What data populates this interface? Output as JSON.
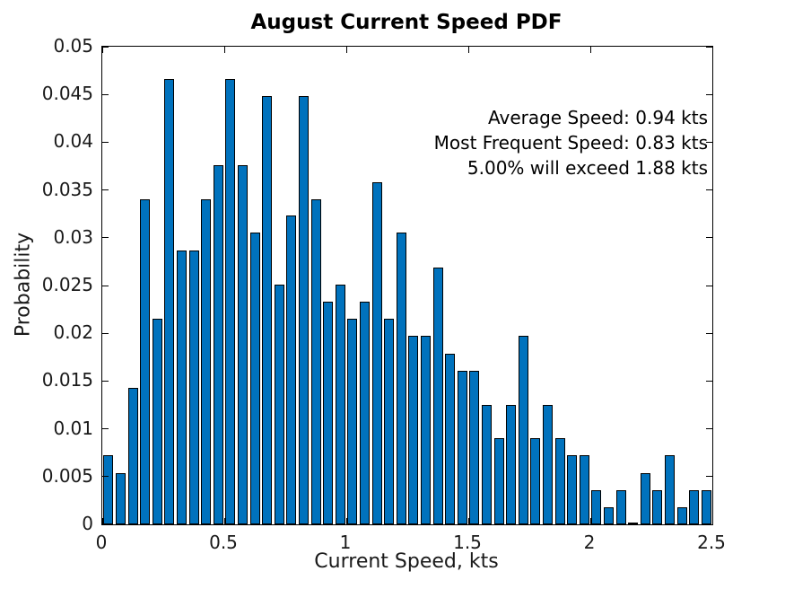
{
  "chart_data": {
    "type": "bar",
    "title": "August Current Speed PDF",
    "xlabel": "Current Speed, kts",
    "ylabel": "Probability",
    "xlim": [
      0,
      2.5
    ],
    "ylim": [
      0,
      0.05
    ],
    "grid": false,
    "legend": "none",
    "bin_width": 0.05,
    "bar_display_width": 0.036,
    "bar_face_color": "#0072BD",
    "bar_edge_color": "#000000",
    "frame_color": "#000000",
    "tick_direction": "in",
    "x_ticks": [
      0,
      0.5,
      1,
      1.5,
      2,
      2.5
    ],
    "x_tick_labels": [
      "0",
      "0.5",
      "1",
      "1.5",
      "2",
      "2.5"
    ],
    "y_ticks": [
      0,
      0.005,
      0.01,
      0.015,
      0.02,
      0.025,
      0.03,
      0.035,
      0.04,
      0.045,
      0.05
    ],
    "y_tick_labels": [
      "0",
      "0.005",
      "0.01",
      "0.015",
      "0.02",
      "0.025",
      "0.03",
      "0.035",
      "0.04",
      "0.045",
      "0.05"
    ],
    "bin_centers": [
      0.025,
      0.075,
      0.125,
      0.175,
      0.225,
      0.275,
      0.325,
      0.375,
      0.425,
      0.475,
      0.525,
      0.575,
      0.625,
      0.675,
      0.725,
      0.775,
      0.825,
      0.875,
      0.925,
      0.975,
      1.025,
      1.075,
      1.125,
      1.175,
      1.225,
      1.275,
      1.325,
      1.375,
      1.425,
      1.475,
      1.525,
      1.575,
      1.625,
      1.675,
      1.725,
      1.775,
      1.825,
      1.875,
      1.925,
      1.975,
      2.025,
      2.075,
      2.125,
      2.175,
      2.225,
      2.275,
      2.325,
      2.375,
      2.425,
      2.475
    ],
    "values": [
      0.0072,
      0.0054,
      0.0143,
      0.034,
      0.0215,
      0.0466,
      0.0287,
      0.0287,
      0.034,
      0.0376,
      0.0466,
      0.0376,
      0.0305,
      0.0448,
      0.0251,
      0.0323,
      0.0448,
      0.034,
      0.0233,
      0.0251,
      0.0215,
      0.0233,
      0.0358,
      0.0215,
      0.0305,
      0.0197,
      0.0197,
      0.0269,
      0.0179,
      0.0161,
      0.0161,
      0.0125,
      0.009,
      0.0125,
      0.0197,
      0.009,
      0.0125,
      0.009,
      0.0072,
      0.0072,
      0.0036,
      0.0018,
      0.0036,
      0.0,
      0.0054,
      0.0036,
      0.0072,
      0.0018,
      0.0036,
      0.0036
    ],
    "annotations": [
      "Average Speed: 0.94 kts",
      "Most Frequent Speed: 0.83 kts",
      "5.00% will exceed 1.88 kts"
    ]
  }
}
